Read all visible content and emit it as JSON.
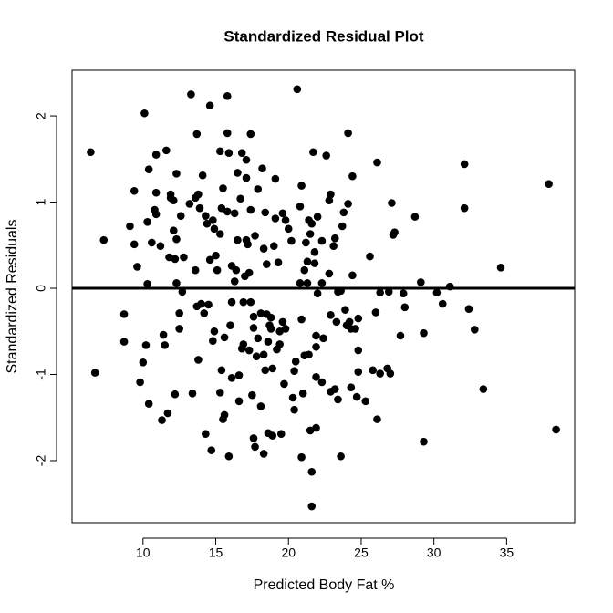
{
  "chart_data": {
    "type": "scatter",
    "title": "Standardized Residual Plot",
    "x_label": "Predicted Body Fat %",
    "y_label": "Standardized Residuals",
    "color": "#000000",
    "reference_line_y": 0,
    "xlim": [
      5.12,
      39.68
    ],
    "ylim": [
      -2.72,
      2.53
    ],
    "xticks": [
      10,
      15,
      20,
      25,
      30,
      35
    ],
    "yticks": [
      -2,
      -1,
      0,
      1,
      2
    ],
    "x": [
      6.4,
      6.7,
      7.3,
      8.7,
      8.7,
      9.1,
      9.4,
      9.4,
      9.6,
      9.8,
      10.0,
      10.1,
      10.2,
      10.3,
      10.3,
      10.4,
      10.4,
      10.6,
      10.8,
      10.9,
      10.9,
      10.9,
      11.2,
      11.3,
      11.4,
      11.5,
      11.6,
      11.7,
      11.8,
      11.9,
      11.9,
      12.1,
      12.1,
      12.2,
      12.2,
      12.3,
      12.3,
      12.3,
      12.5,
      12.5,
      12.6,
      12.7,
      12.8,
      13.2,
      13.3,
      13.4,
      13.6,
      13.6,
      13.7,
      13.7,
      13.8,
      13.8,
      13.9,
      14.0,
      14.1,
      14.2,
      14.3,
      14.3,
      14.4,
      14.5,
      14.6,
      14.6,
      14.7,
      14.8,
      14.8,
      14.9,
      14.9,
      15.0,
      15.1,
      15.3,
      15.3,
      15.3,
      15.4,
      15.4,
      15.5,
      15.5,
      15.6,
      15.6,
      15.8,
      15.8,
      15.8,
      15.9,
      15.9,
      16.0,
      16.1,
      16.1,
      16.1,
      16.3,
      16.3,
      16.4,
      16.5,
      16.5,
      16.6,
      16.6,
      16.7,
      16.8,
      16.8,
      16.9,
      16.9,
      17.0,
      17.1,
      17.1,
      17.1,
      17.2,
      17.3,
      17.3,
      17.4,
      17.4,
      17.4,
      17.5,
      17.6,
      17.6,
      17.6,
      17.7,
      17.7,
      17.8,
      17.9,
      17.9,
      18.1,
      18.1,
      18.2,
      18.3,
      18.3,
      18.3,
      18.4,
      18.4,
      18.5,
      18.5,
      18.6,
      18.6,
      18.7,
      18.8,
      18.8,
      18.9,
      18.9,
      19.0,
      19.1,
      19.1,
      19.2,
      19.3,
      19.4,
      19.4,
      19.5,
      19.6,
      19.6,
      19.7,
      19.8,
      19.8,
      20.0,
      20.2,
      20.3,
      20.4,
      20.4,
      20.5,
      20.6,
      20.8,
      20.8,
      20.9,
      20.9,
      20.9,
      21.0,
      21.1,
      21.1,
      21.2,
      21.3,
      21.3,
      21.4,
      21.4,
      21.5,
      21.5,
      21.6,
      21.6,
      21.6,
      21.7,
      21.8,
      21.8,
      21.9,
      21.9,
      21.9,
      21.9,
      22.0,
      22.0,
      22.3,
      22.3,
      22.3,
      22.4,
      22.6,
      22.8,
      22.8,
      22.9,
      22.9,
      22.9,
      23.1,
      23.2,
      23.2,
      23.3,
      23.4,
      23.4,
      23.6,
      23.6,
      23.7,
      23.8,
      23.9,
      24.0,
      24.1,
      24.1,
      24.2,
      24.3,
      24.3,
      24.4,
      24.4,
      24.6,
      24.7,
      24.8,
      24.8,
      24.8,
      25.3,
      25.6,
      25.8,
      26.0,
      26.1,
      26.1,
      26.3,
      26.3,
      26.8,
      26.9,
      27.0,
      27.1,
      27.2,
      27.3,
      27.7,
      27.9,
      28.0,
      28.7,
      29.1,
      29.3,
      29.3,
      30.2,
      30.6,
      31.1,
      32.1,
      32.1,
      32.4,
      32.8,
      33.4,
      34.6,
      37.9,
      38.4
    ],
    "y": [
      1.58,
      -0.98,
      0.56,
      -0.3,
      -0.62,
      0.72,
      1.13,
      0.51,
      0.25,
      -1.09,
      -0.86,
      2.03,
      -0.66,
      0.77,
      0.05,
      -1.34,
      1.38,
      0.53,
      0.91,
      1.55,
      1.11,
      0.86,
      0.49,
      -1.53,
      -0.54,
      -0.66,
      1.6,
      -1.45,
      0.36,
      1.09,
      1.05,
      0.67,
      1.02,
      -1.23,
      0.34,
      1.33,
      0.06,
      0.57,
      -0.29,
      -0.47,
      0.84,
      -0.04,
      0.36,
      0.98,
      2.25,
      -1.22,
      1.05,
      0.21,
      -0.21,
      1.79,
      -0.83,
      1.09,
      0.93,
      -0.18,
      1.31,
      -0.29,
      -1.69,
      0.84,
      0.75,
      -0.19,
      0.33,
      2.12,
      -1.88,
      -0.61,
      0.79,
      0.69,
      -0.5,
      0.38,
      0.21,
      1.59,
      0.63,
      -1.21,
      0.93,
      -0.95,
      1.16,
      -1.52,
      -1.47,
      -0.57,
      2.23,
      1.8,
      0.89,
      1.57,
      -1.95,
      -0.43,
      0.26,
      -0.16,
      -1.04,
      0.08,
      0.87,
      0.21,
      1.34,
      0.56,
      -1.31,
      -1.01,
      1.04,
      -0.7,
      1.57,
      -0.65,
      -0.16,
      0.14,
      0.56,
      1.28,
      1.49,
      0.51,
      0.18,
      -0.72,
      1.79,
      0.91,
      -0.16,
      -1.24,
      -0.33,
      -0.46,
      -1.74,
      0.61,
      -1.84,
      -0.79,
      -0.58,
      1.15,
      -0.29,
      -1.37,
      1.39,
      0.46,
      -1.92,
      -0.77,
      -0.95,
      0.88,
      -0.3,
      0.28,
      -1.68,
      -0.62,
      -0.43,
      -0.47,
      -0.34,
      -1.71,
      -0.93,
      0.49,
      1.27,
      0.81,
      -0.71,
      0.3,
      -0.5,
      -0.65,
      -1.69,
      -0.39,
      0.87,
      -1.11,
      0.79,
      -0.47,
      0.69,
      0.55,
      -1.27,
      -1.41,
      -0.96,
      -0.85,
      2.31,
      0.06,
      0.95,
      -0.36,
      -1.96,
      1.19,
      -1.22,
      0.21,
      -0.78,
      0.53,
      0.31,
      0.06,
      0.79,
      -0.77,
      0.63,
      -1.65,
      -2.13,
      -2.53,
      0.75,
      1.58,
      0.29,
      0.42,
      -1.03,
      -1.62,
      -0.68,
      -0.55,
      0.83,
      -0.06,
      0.06,
      0.55,
      -1.09,
      -0.58,
      1.54,
      1.02,
      0.17,
      -0.31,
      1.09,
      -1.2,
      0.49,
      0.58,
      -1.17,
      -0.39,
      -0.04,
      -1.29,
      -1.95,
      -0.03,
      0.72,
      0.88,
      -0.25,
      -0.43,
      0.98,
      1.8,
      -0.39,
      -1.15,
      -0.47,
      1.3,
      0.15,
      -0.47,
      -1.26,
      -0.72,
      -0.97,
      -0.35,
      -1.31,
      0.37,
      -0.95,
      -0.28,
      1.46,
      -1.52,
      -0.05,
      -0.99,
      -0.93,
      -0.04,
      -0.99,
      0.99,
      0.62,
      0.65,
      -0.55,
      -0.06,
      -0.22,
      0.83,
      0.07,
      -0.52,
      -1.78,
      -0.05,
      -0.18,
      0.02,
      1.44,
      0.93,
      -0.24,
      -0.48,
      -1.17,
      0.24,
      1.21,
      -1.64
    ]
  }
}
